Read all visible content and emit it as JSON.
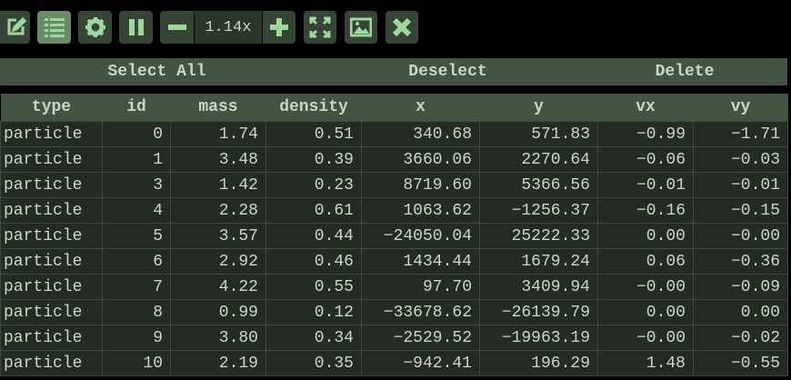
{
  "toolbar": {
    "zoom_level": "1.14x",
    "buttons": [
      "edit-icon",
      "list-icon",
      "gear-icon",
      "pause-icon",
      "minus-icon",
      "plus-icon",
      "fullscreen-icon",
      "image-icon",
      "close-icon"
    ],
    "active": "list-icon"
  },
  "actions": {
    "select_all": "Select All",
    "deselect": "Deselect",
    "delete": "Delete"
  },
  "table": {
    "columns": [
      "type",
      "id",
      "mass",
      "density",
      "x",
      "y",
      "vx",
      "vy"
    ],
    "rows": [
      [
        "particle",
        "0",
        "1.74",
        "0.51",
        "340.68",
        "571.83",
        "−0.99",
        "−1.71"
      ],
      [
        "particle",
        "1",
        "3.48",
        "0.39",
        "3660.06",
        "2270.64",
        "−0.06",
        "−0.03"
      ],
      [
        "particle",
        "3",
        "1.42",
        "0.23",
        "8719.60",
        "5366.56",
        "−0.01",
        "−0.01"
      ],
      [
        "particle",
        "4",
        "2.28",
        "0.61",
        "1063.62",
        "−1256.37",
        "−0.16",
        "−0.15"
      ],
      [
        "particle",
        "5",
        "3.57",
        "0.44",
        "−24050.04",
        "25222.33",
        "0.00",
        "−0.00"
      ],
      [
        "particle",
        "6",
        "2.92",
        "0.46",
        "1434.44",
        "1679.24",
        "0.06",
        "−0.36"
      ],
      [
        "particle",
        "7",
        "4.22",
        "0.55",
        "97.70",
        "3409.94",
        "−0.00",
        "−0.09"
      ],
      [
        "particle",
        "8",
        "0.99",
        "0.12",
        "−33678.62",
        "−26139.79",
        "0.00",
        "0.00"
      ],
      [
        "particle",
        "9",
        "3.80",
        "0.34",
        "−2529.52",
        "−19963.19",
        "−0.00",
        "−0.02"
      ],
      [
        "particle",
        "10",
        "2.19",
        "0.35",
        "−942.41",
        "196.29",
        "1.48",
        "−0.55"
      ]
    ]
  },
  "colors": {
    "accent": "#9fd89f",
    "header": "#435443",
    "row": "#232b23",
    "text": "#c8d8c8"
  }
}
